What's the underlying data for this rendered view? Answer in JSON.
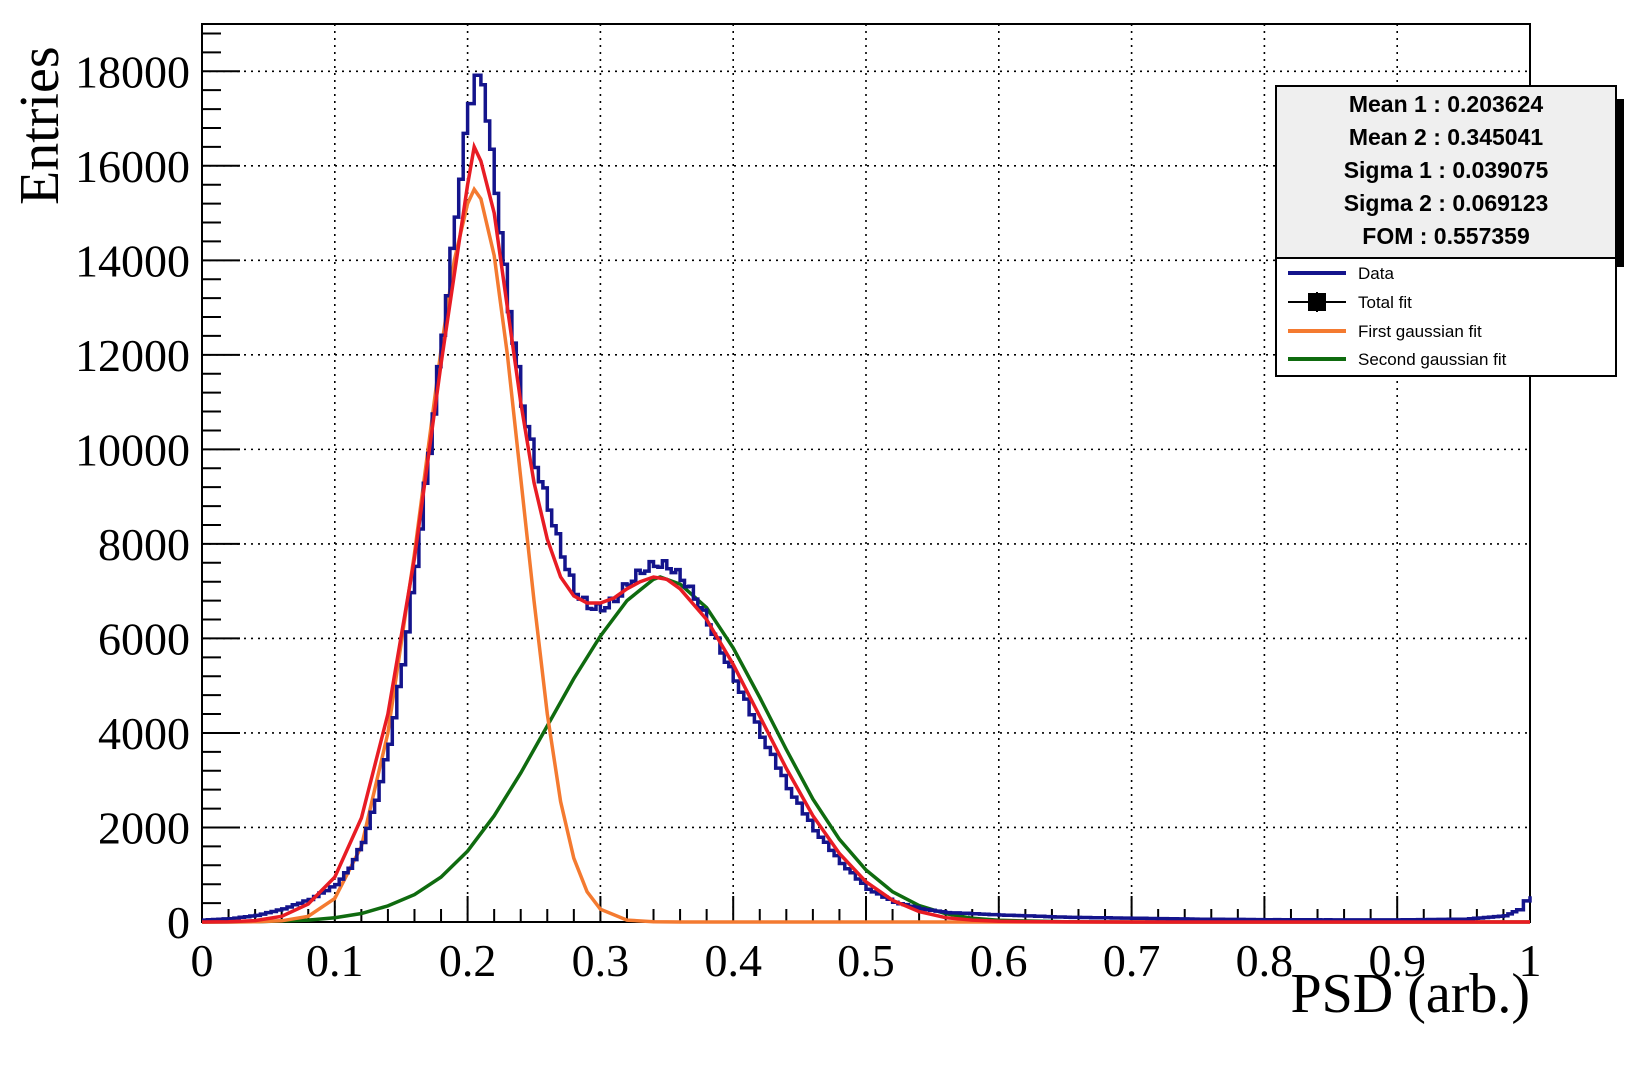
{
  "chart_data": {
    "type": "line",
    "title": "",
    "xlabel": "PSD (arb.)",
    "ylabel": "Entries",
    "xlim": [
      0,
      1
    ],
    "ylim": [
      0,
      19000
    ],
    "grid": true,
    "x_ticks": [
      "0",
      "0.1",
      "0.2",
      "0.3",
      "0.4",
      "0.5",
      "0.6",
      "0.7",
      "0.8",
      "0.9",
      "1"
    ],
    "y_ticks": [
      "0",
      "2000",
      "4000",
      "6000",
      "8000",
      "10000",
      "12000",
      "14000",
      "16000",
      "18000"
    ],
    "colors": {
      "data": "#14148c",
      "total": "#e81c24",
      "first": "#f47a30",
      "second": "#0f6b0f"
    },
    "series": [
      {
        "name": "Data",
        "x": [
          0.0,
          0.02,
          0.04,
          0.06,
          0.08,
          0.1,
          0.11,
          0.12,
          0.13,
          0.14,
          0.15,
          0.16,
          0.17,
          0.18,
          0.19,
          0.2,
          0.205,
          0.21,
          0.22,
          0.23,
          0.24,
          0.25,
          0.26,
          0.27,
          0.28,
          0.29,
          0.3,
          0.31,
          0.32,
          0.33,
          0.34,
          0.35,
          0.36,
          0.37,
          0.38,
          0.39,
          0.4,
          0.42,
          0.44,
          0.46,
          0.48,
          0.5,
          0.52,
          0.54,
          0.56,
          0.6,
          0.65,
          0.7,
          0.75,
          0.8,
          0.85,
          0.9,
          0.95,
          0.98,
          0.99,
          0.995,
          1.0
        ],
        "values": [
          40,
          70,
          140,
          280,
          480,
          800,
          1150,
          1700,
          2600,
          3800,
          5500,
          7600,
          10000,
          12500,
          15000,
          17400,
          18000,
          17800,
          15500,
          13000,
          11000,
          9700,
          8800,
          7800,
          7000,
          6700,
          6650,
          6850,
          7200,
          7450,
          7600,
          7550,
          7300,
          6900,
          6350,
          5750,
          5150,
          3950,
          2850,
          1950,
          1250,
          700,
          420,
          280,
          200,
          150,
          100,
          80,
          60,
          50,
          45,
          45,
          60,
          130,
          260,
          450,
          550
        ]
      },
      {
        "name": "Total fit",
        "x": [
          0.0,
          0.02,
          0.04,
          0.06,
          0.08,
          0.1,
          0.12,
          0.14,
          0.16,
          0.18,
          0.2,
          0.205,
          0.21,
          0.22,
          0.23,
          0.24,
          0.25,
          0.26,
          0.27,
          0.28,
          0.29,
          0.3,
          0.31,
          0.32,
          0.33,
          0.34,
          0.35,
          0.36,
          0.38,
          0.4,
          0.42,
          0.44,
          0.46,
          0.48,
          0.5,
          0.52,
          0.54,
          0.56,
          0.58,
          0.6,
          0.65,
          0.7,
          1.0
        ],
        "values": [
          0,
          5,
          30,
          120,
          380,
          950,
          2200,
          4400,
          7700,
          11800,
          15600,
          16400,
          16100,
          15000,
          13000,
          11000,
          9300,
          8100,
          7300,
          6900,
          6750,
          6750,
          6850,
          7050,
          7200,
          7300,
          7250,
          7050,
          6400,
          5450,
          4350,
          3250,
          2250,
          1450,
          850,
          460,
          220,
          90,
          40,
          15,
          2,
          0,
          0
        ]
      },
      {
        "name": "First gaussian fit",
        "x": [
          0.0,
          0.02,
          0.04,
          0.06,
          0.08,
          0.1,
          0.12,
          0.14,
          0.16,
          0.18,
          0.19,
          0.2,
          0.205,
          0.21,
          0.22,
          0.23,
          0.24,
          0.25,
          0.26,
          0.27,
          0.28,
          0.29,
          0.3,
          0.32,
          0.34,
          0.36,
          0.4,
          1.0
        ],
        "values": [
          0,
          0,
          5,
          25,
          120,
          500,
          1600,
          4000,
          7800,
          12100,
          14000,
          15200,
          15500,
          15300,
          14100,
          12000,
          9400,
          6800,
          4400,
          2550,
          1350,
          640,
          270,
          40,
          4,
          0,
          0,
          0
        ]
      },
      {
        "name": "Second gaussian fit",
        "x": [
          0.0,
          0.04,
          0.08,
          0.1,
          0.12,
          0.14,
          0.16,
          0.18,
          0.2,
          0.22,
          0.24,
          0.26,
          0.28,
          0.3,
          0.32,
          0.34,
          0.345,
          0.36,
          0.38,
          0.4,
          0.42,
          0.44,
          0.46,
          0.48,
          0.5,
          0.52,
          0.54,
          0.56,
          0.58,
          0.6,
          0.65,
          0.7,
          1.0
        ],
        "values": [
          0,
          5,
          40,
          90,
          180,
          340,
          580,
          950,
          1500,
          2250,
          3150,
          4150,
          5150,
          6050,
          6800,
          7250,
          7300,
          7150,
          6650,
          5800,
          4750,
          3650,
          2600,
          1750,
          1100,
          640,
          350,
          175,
          80,
          35,
          5,
          0,
          0
        ]
      }
    ],
    "stats": [
      "Mean 1 : 0.203624",
      "Mean 2 : 0.345041",
      "Sigma 1 : 0.039075",
      "Sigma 2 : 0.069123",
      "FOM : 0.557359"
    ],
    "legend": [
      "Data",
      "Total fit",
      "First gaussian fit",
      "Second gaussian fit"
    ],
    "legend_position": "top-right"
  }
}
